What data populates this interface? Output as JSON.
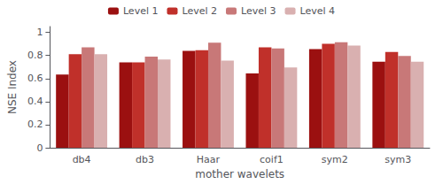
{
  "chart_data": {
    "type": "bar",
    "categories": [
      "db4",
      "db3",
      "Haar",
      "coif1",
      "sym2",
      "sym3"
    ],
    "series": [
      {
        "name": "Level 1",
        "color": "#9B1010",
        "values": [
          0.635,
          0.74,
          0.84,
          0.645,
          0.855,
          0.745
        ]
      },
      {
        "name": "Level 2",
        "color": "#C0302A",
        "values": [
          0.81,
          0.74,
          0.845,
          0.87,
          0.9,
          0.83
        ]
      },
      {
        "name": "Level 3",
        "color": "#C87878",
        "values": [
          0.87,
          0.79,
          0.91,
          0.86,
          0.915,
          0.795
        ]
      },
      {
        "name": "Level 4",
        "color": "#D9B0B0",
        "values": [
          0.81,
          0.765,
          0.755,
          0.695,
          0.885,
          0.745
        ]
      }
    ],
    "xlabel": "mother wavelets",
    "ylabel": "NSE Index",
    "ylim": [
      0,
      1.05
    ],
    "yticks": [
      0,
      0.2,
      0.4,
      0.6,
      0.8,
      1
    ],
    "grid": false,
    "legend": "top"
  }
}
